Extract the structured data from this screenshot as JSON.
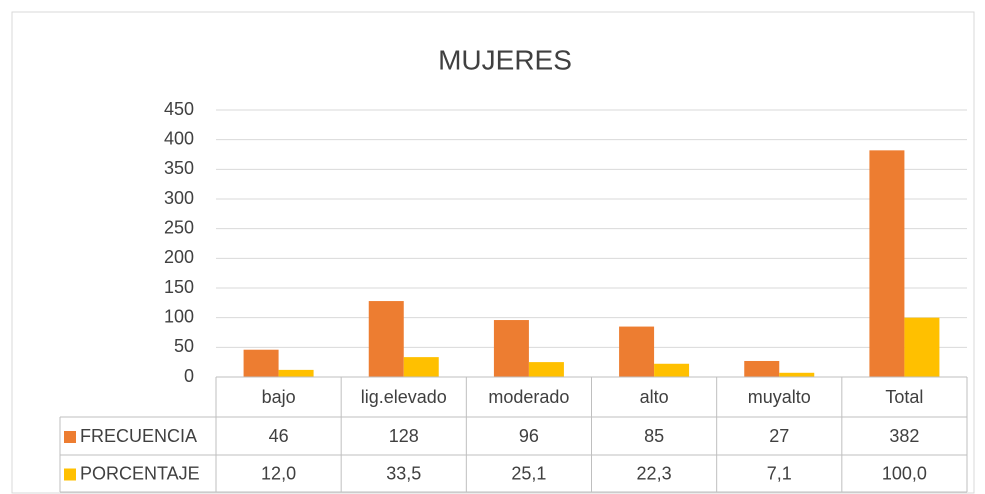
{
  "chart_data": {
    "type": "bar",
    "title": "MUJERES",
    "categories": [
      "bajo",
      "lig.elevado",
      "moderado",
      "alto",
      "muyalto",
      "Total"
    ],
    "series": [
      {
        "name": "FRECUENCIA",
        "color": "#ed7d31",
        "values": [
          46,
          128,
          96,
          85,
          27,
          382
        ]
      },
      {
        "name": "PORCENTAJE",
        "color": "#ffc000",
        "values": [
          12.0,
          33.5,
          25.1,
          22.3,
          7.1,
          100.0
        ],
        "value_labels": [
          "12,0",
          "33,5",
          "25,1",
          "22,3",
          "7,1",
          "100,0"
        ]
      }
    ],
    "ylim": [
      0,
      450
    ],
    "yticks": [
      0,
      50,
      100,
      150,
      200,
      250,
      300,
      350,
      400,
      450
    ],
    "grid": true,
    "data_table": true
  }
}
